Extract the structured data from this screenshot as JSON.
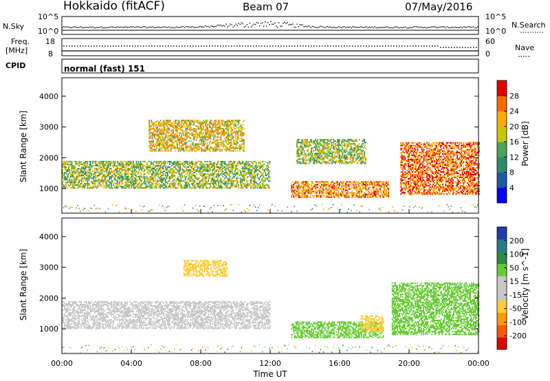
{
  "header": {
    "title": "Hokkaido (fitACF)",
    "beam": "Beam 07",
    "date": "07/May/2016"
  },
  "top_panels": {
    "nsky_label": "N.Sky",
    "nsky_ticks": [
      "10^5",
      "10^0"
    ],
    "nsearch_label": "N.Search",
    "nsearch_ticks": [
      "10^5",
      "10^0"
    ],
    "freq_label_1": "Freq.",
    "freq_label_2": "[MHz]",
    "freq_ticks": [
      "18",
      "8"
    ],
    "nave_label": "Nave",
    "nave_ticks": [
      "60",
      "0"
    ],
    "cpid_label": "CPID",
    "cpid_text": "normal (fast) 151"
  },
  "colors": {
    "power_scale": [
      "#0000ff",
      "#1e5aa8",
      "#2f8a6a",
      "#4aa55a",
      "#c8c800",
      "#ffaa00",
      "#ff6a00",
      "#e00000"
    ],
    "velocity_scale": [
      "#e00000",
      "#ff5a00",
      "#ff9900",
      "#ffcc33",
      "#c8c8c8",
      "#c8c8c8",
      "#66cc33",
      "#2d8a4a",
      "#2a7a8a",
      "#1e3ea8"
    ],
    "ground_scatter": "#bfbfbf"
  },
  "chart_data": [
    {
      "type": "heatmap",
      "panel": "power",
      "ylabel": "Slant Range [km]",
      "yticks": [
        "1000",
        "2000",
        "3000",
        "4000"
      ],
      "ylim": [
        200,
        4600
      ],
      "colorbar_label": "Power [dB]",
      "colorbar_ticks": [
        "4",
        "8",
        "12",
        "16",
        "20",
        "24",
        "28"
      ],
      "colorbar_range": [
        0,
        32
      ],
      "echo_regions": [
        {
          "t_start": 0.0,
          "t_end": 12.0,
          "range_low": 1000,
          "range_high": 1900,
          "power": 16
        },
        {
          "t_start": 5.0,
          "t_end": 10.5,
          "range_low": 2200,
          "range_high": 3200,
          "power": 20
        },
        {
          "t_start": 13.2,
          "t_end": 18.8,
          "range_low": 700,
          "range_high": 1200,
          "power": 24
        },
        {
          "t_start": 13.5,
          "t_end": 17.5,
          "range_low": 1800,
          "range_high": 2600,
          "power": 16
        },
        {
          "t_start": 19.5,
          "t_end": 24.0,
          "range_low": 800,
          "range_high": 2500,
          "power": 26
        }
      ]
    },
    {
      "type": "heatmap",
      "panel": "velocity",
      "ylabel": "Slant Range [km]",
      "yticks": [
        "1000",
        "2000",
        "3000",
        "4000"
      ],
      "ylim": [
        200,
        4600
      ],
      "colorbar_label": "Velocity [m s^-1]",
      "colorbar_ticks": [
        "-200",
        "-100",
        "-50",
        "-15",
        "15",
        "50",
        "100",
        "200"
      ],
      "colorbar_range": [
        -250,
        250
      ],
      "xlabel": "Time UT",
      "xticks": [
        "00:00",
        "04:00",
        "08:00",
        "12:00",
        "16:00",
        "20:00",
        "00:00"
      ],
      "xlim": [
        0,
        24
      ],
      "echo_regions": [
        {
          "t_start": 0.0,
          "t_end": 12.0,
          "range_low": 1000,
          "range_high": 1900,
          "velocity": 0
        },
        {
          "t_start": 7.0,
          "t_end": 9.5,
          "range_low": 2700,
          "range_high": 3200,
          "velocity": -40
        },
        {
          "t_start": 13.2,
          "t_end": 18.5,
          "range_low": 700,
          "range_high": 1200,
          "velocity": 40
        },
        {
          "t_start": 17.2,
          "t_end": 18.5,
          "range_low": 900,
          "range_high": 1400,
          "velocity": -40
        },
        {
          "t_start": 19.0,
          "t_end": 24.0,
          "range_low": 800,
          "range_high": 2500,
          "velocity": 25
        }
      ]
    }
  ]
}
